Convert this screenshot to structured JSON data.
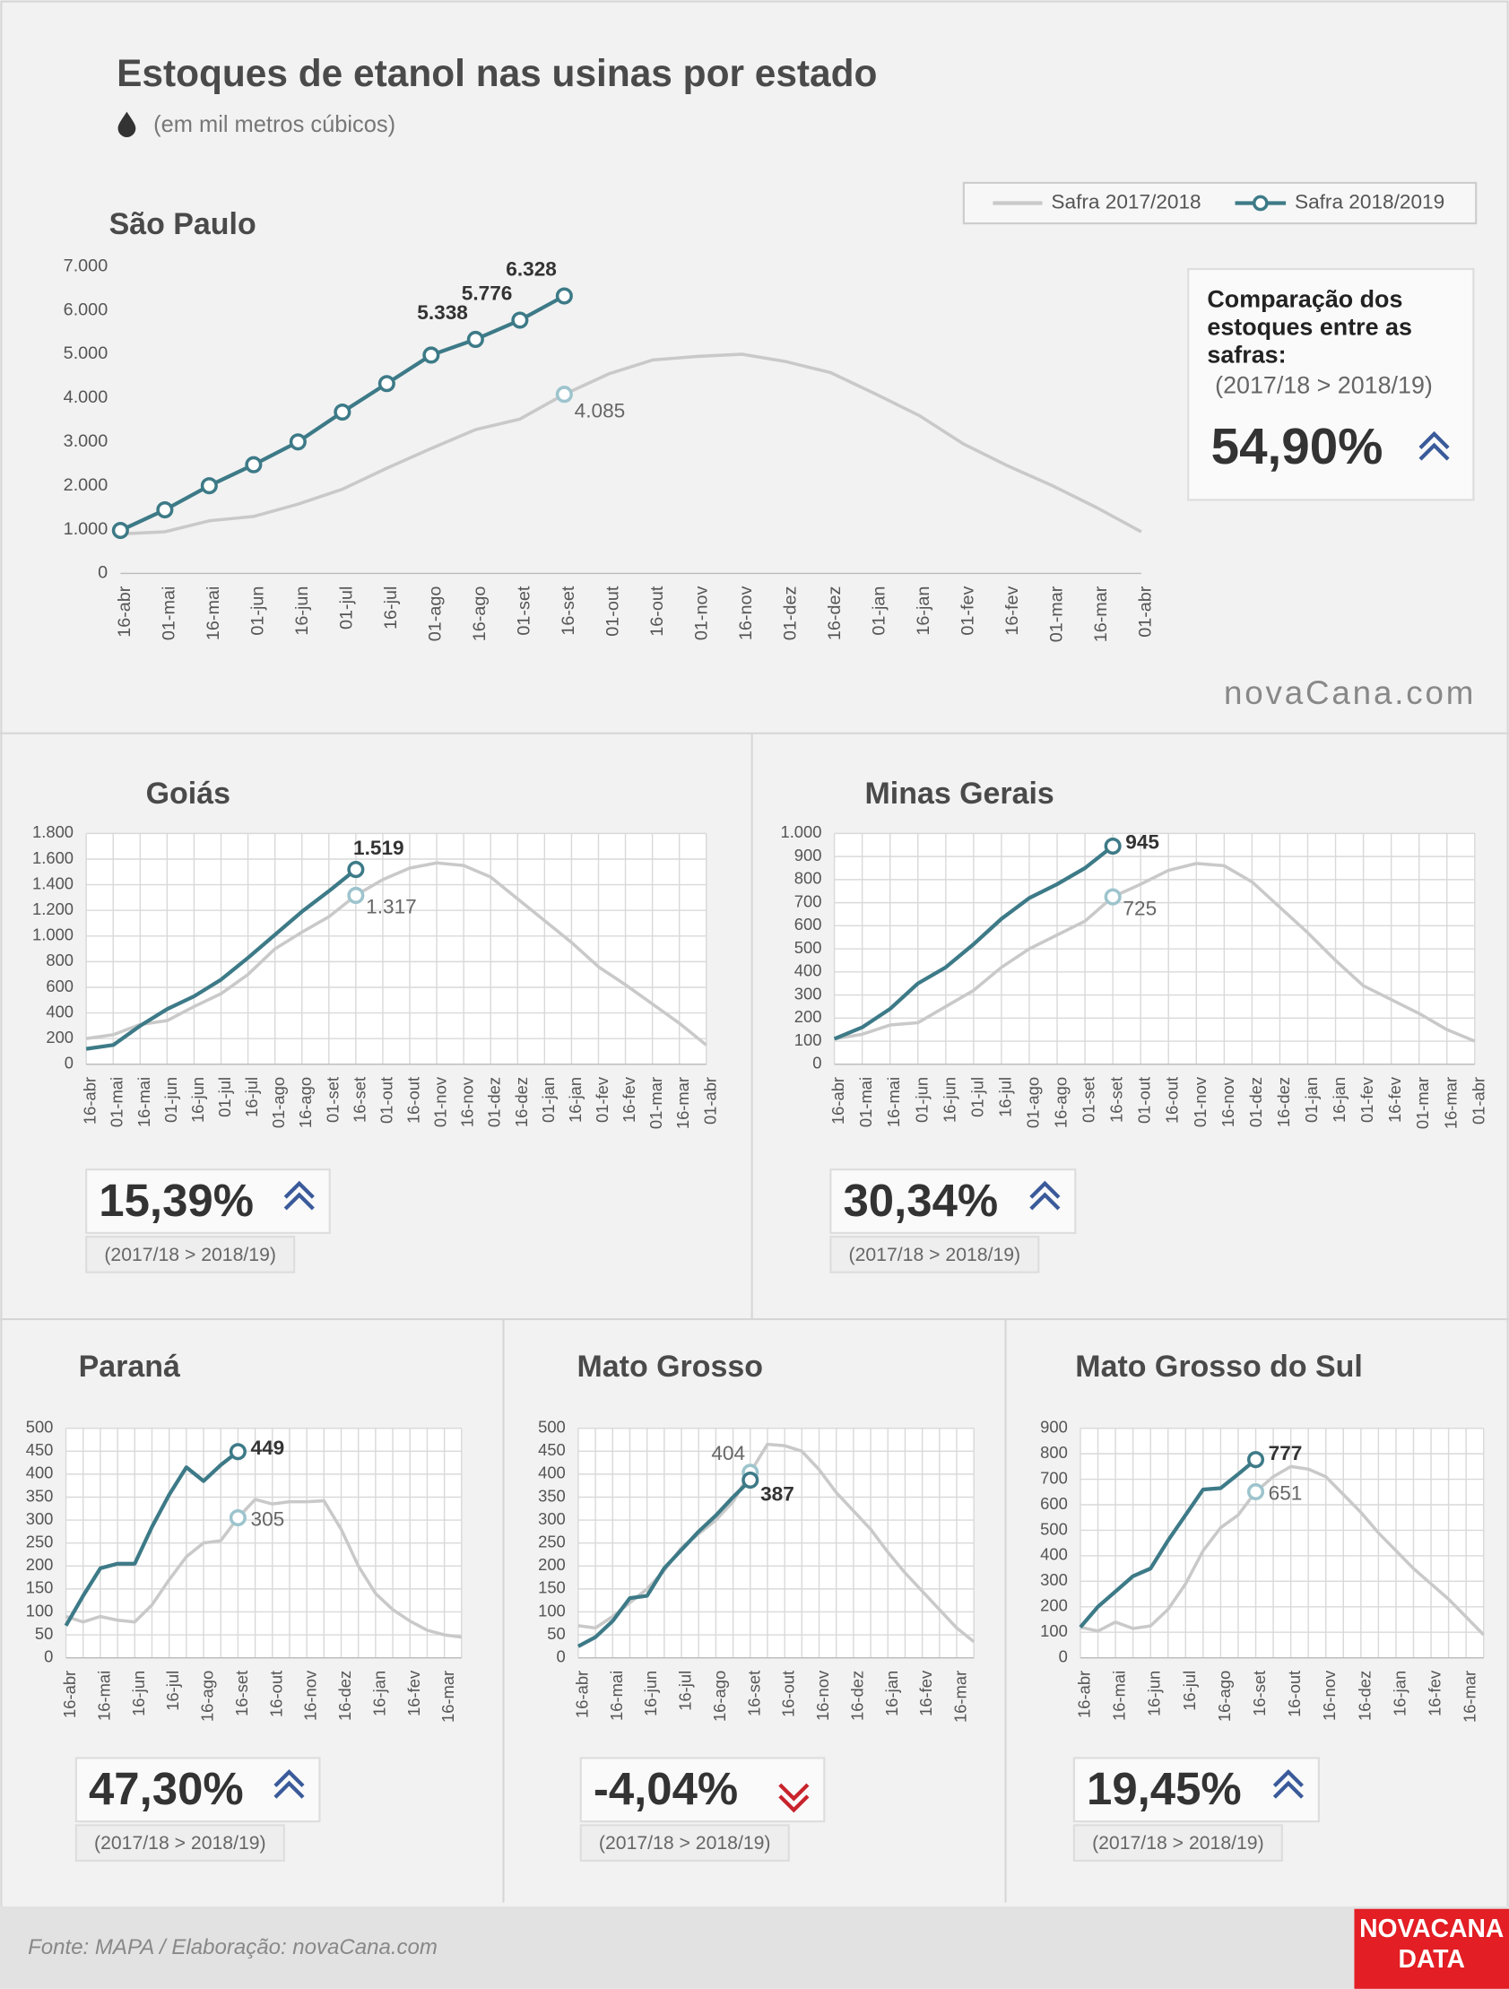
{
  "title": "Estoques de etanol nas usinas por estado",
  "subtitle": "(em mil metros cúbicos)",
  "brand": "novaCana.com",
  "source": "Fonte: MAPA  / Elaboração: novaCana.com",
  "logo": [
    "NOVACANA",
    "DATA"
  ],
  "chart_data": [
    {
      "type": "line",
      "title": "São Paulo",
      "grid": false,
      "note": "Comparação dos estoques entre as safras:",
      "period": "(2017/18 > 2018/19)",
      "change": "54,90%",
      "categories": [
        "16-abr",
        "01-mai",
        "16-mai",
        "01-jun",
        "16-jun",
        "01-jul",
        "16-jul",
        "01-ago",
        "16-ago",
        "01-set",
        "16-set",
        "01-out",
        "16-out",
        "01-nov",
        "16-nov",
        "01-dez",
        "16-dez",
        "01-jan",
        "16-jan",
        "01-fev",
        "16-fev",
        "01-mar",
        "16-mar",
        "01-abr"
      ],
      "ylim": [
        0,
        7000
      ],
      "yticks": [
        0,
        {
          "value": 1000,
          "label": "1.000"
        },
        {
          "value": 2000,
          "label": "2.000"
        },
        {
          "value": 3000,
          "label": "3.000"
        },
        {
          "value": 4000,
          "label": "4.000"
        },
        {
          "value": 5000,
          "label": "5.000"
        },
        {
          "value": 6000,
          "label": "6.000"
        },
        {
          "value": 7000,
          "label": "7.000"
        }
      ],
      "series": [
        {
          "name": "Safra 2017/2018",
          "color": "#c9c9c9",
          "marker_color": "#9dc4cd",
          "values": [
            900,
            950,
            1200,
            1300,
            1580,
            1920,
            2400,
            2850,
            3280,
            3520,
            4085,
            4550,
            4870,
            4950,
            5000,
            4830,
            4580,
            4100,
            3600,
            2950,
            2450,
            2000,
            1500,
            950
          ],
          "value_labels": [
            null,
            null,
            null,
            null,
            null,
            null,
            null,
            null,
            null,
            null,
            "4.085",
            null,
            null,
            null,
            null,
            null,
            null,
            null,
            null,
            null,
            null,
            null,
            null,
            null
          ]
        },
        {
          "name": "Safra 2018/2019",
          "color": "#3d7a87",
          "markers": true,
          "values": [
            980,
            1450,
            2000,
            2480,
            3000,
            3680,
            4330,
            4980,
            5338,
            5776,
            6328,
            null,
            null,
            null,
            null,
            null,
            null,
            null,
            null,
            null,
            null,
            null,
            null,
            null
          ],
          "value_labels": [
            null,
            null,
            null,
            null,
            null,
            null,
            null,
            null,
            "5.338",
            "5.776",
            "6.328",
            null,
            null,
            null,
            null,
            null,
            null,
            null,
            null,
            null,
            null,
            null,
            null,
            null
          ]
        }
      ]
    },
    {
      "type": "line",
      "title": "Goiás",
      "grid": true,
      "period": "(2017/18 > 2018/19)",
      "change": "15,39%",
      "categories": [
        "16-abr",
        "01-mai",
        "16-mai",
        "01-jun",
        "16-jun",
        "01-jul",
        "16-jul",
        "01-ago",
        "16-ago",
        "01-set",
        "16-set",
        "01-out",
        "16-out",
        "01-nov",
        "16-nov",
        "01-dez",
        "16-dez",
        "01-jan",
        "16-jan",
        "01-fev",
        "16-fev",
        "01-mar",
        "16-mar",
        "01-abr"
      ],
      "ylim": [
        0,
        1800
      ],
      "yticks": [
        0,
        200,
        400,
        600,
        800,
        {
          "value": 1000,
          "label": "1.000"
        },
        {
          "value": 1200,
          "label": "1.200"
        },
        {
          "value": 1400,
          "label": "1.400"
        },
        {
          "value": 1600,
          "label": "1.600"
        },
        {
          "value": 1800,
          "label": "1.800"
        }
      ],
      "series": [
        {
          "name": "Safra 2017/2018",
          "color": "#c9c9c9",
          "marker_color": "#9dc4cd",
          "values": [
            200,
            230,
            310,
            340,
            450,
            550,
            700,
            900,
            1030,
            1150,
            1317,
            1440,
            1530,
            1570,
            1550,
            1460,
            1290,
            1120,
            950,
            760,
            620,
            470,
            320,
            150
          ],
          "value_labels": [
            null,
            null,
            null,
            null,
            null,
            null,
            null,
            null,
            null,
            null,
            "1.317",
            null,
            null,
            null,
            null,
            null,
            null,
            null,
            null,
            null,
            null,
            null,
            null,
            null
          ]
        },
        {
          "name": "Safra 2018/2019",
          "color": "#3d7a87",
          "values": [
            120,
            150,
            300,
            430,
            530,
            660,
            830,
            1010,
            1190,
            1350,
            1519,
            null,
            null,
            null,
            null,
            null,
            null,
            null,
            null,
            null,
            null,
            null,
            null,
            null
          ],
          "value_labels": [
            null,
            null,
            null,
            null,
            null,
            null,
            null,
            null,
            null,
            null,
            "1.519",
            null,
            null,
            null,
            null,
            null,
            null,
            null,
            null,
            null,
            null,
            null,
            null,
            null
          ]
        }
      ]
    },
    {
      "type": "line",
      "title": "Minas Gerais",
      "grid": true,
      "period": "(2017/18 > 2018/19)",
      "change": "30,34%",
      "categories": [
        "16-abr",
        "01-mai",
        "16-mai",
        "01-jun",
        "16-jun",
        "01-jul",
        "16-jul",
        "01-ago",
        "16-ago",
        "01-set",
        "16-set",
        "01-out",
        "16-out",
        "01-nov",
        "16-nov",
        "01-dez",
        "16-dez",
        "01-jan",
        "16-jan",
        "01-fev",
        "16-fev",
        "01-mar",
        "16-mar",
        "01-abr"
      ],
      "ylim": [
        0,
        1000
      ],
      "yticks": [
        0,
        100,
        200,
        300,
        400,
        500,
        600,
        700,
        800,
        900,
        {
          "value": 1000,
          "label": "1.000"
        }
      ],
      "series": [
        {
          "name": "Safra 2017/2018",
          "color": "#c9c9c9",
          "marker_color": "#9dc4cd",
          "values": [
            110,
            130,
            170,
            180,
            250,
            320,
            420,
            500,
            560,
            620,
            725,
            780,
            840,
            870,
            860,
            790,
            680,
            570,
            450,
            340,
            280,
            220,
            150,
            100
          ],
          "value_labels": [
            null,
            null,
            null,
            null,
            null,
            null,
            null,
            null,
            null,
            null,
            "725",
            null,
            null,
            null,
            null,
            null,
            null,
            null,
            null,
            null,
            null,
            null,
            null,
            null
          ]
        },
        {
          "name": "Safra 2018/2019",
          "color": "#3d7a87",
          "values": [
            110,
            160,
            240,
            350,
            420,
            520,
            630,
            720,
            780,
            850,
            945,
            null,
            null,
            null,
            null,
            null,
            null,
            null,
            null,
            null,
            null,
            null,
            null,
            null
          ],
          "value_labels": [
            null,
            null,
            null,
            null,
            null,
            null,
            null,
            null,
            null,
            null,
            "945",
            null,
            null,
            null,
            null,
            null,
            null,
            null,
            null,
            null,
            null,
            null,
            null,
            null
          ]
        }
      ]
    },
    {
      "type": "line",
      "title": "Paraná",
      "grid": true,
      "period": "(2017/18 > 2018/19)",
      "change": "47,30%",
      "categories": [
        "16-abr",
        null,
        "16-mai",
        null,
        "16-jun",
        null,
        "16-jul",
        null,
        "16-ago",
        null,
        "16-set",
        null,
        "16-out",
        null,
        "16-nov",
        null,
        "16-dez",
        null,
        "16-jan",
        null,
        "16-fev",
        null,
        "16-mar",
        null
      ],
      "ylim": [
        0,
        500
      ],
      "yticks": [
        0,
        50,
        100,
        150,
        200,
        250,
        300,
        350,
        400,
        450,
        500
      ],
      "series": [
        {
          "name": "Safra 2017/2018",
          "color": "#c9c9c9",
          "marker_color": "#9dc4cd",
          "values": [
            90,
            78,
            90,
            82,
            78,
            115,
            170,
            220,
            250,
            255,
            305,
            345,
            335,
            340,
            340,
            342,
            280,
            200,
            140,
            105,
            80,
            60,
            50,
            45
          ],
          "value_labels": [
            null,
            null,
            null,
            null,
            null,
            null,
            null,
            null,
            null,
            null,
            "305",
            null,
            null,
            null,
            null,
            null,
            null,
            null,
            null,
            null,
            null,
            null,
            null,
            null
          ]
        },
        {
          "name": "Safra 2018/2019",
          "color": "#3d7a87",
          "values": [
            70,
            135,
            195,
            205,
            205,
            285,
            355,
            415,
            385,
            420,
            449,
            null,
            null,
            null,
            null,
            null,
            null,
            null,
            null,
            null,
            null,
            null,
            null,
            null
          ],
          "value_labels": [
            null,
            null,
            null,
            null,
            null,
            null,
            null,
            null,
            null,
            null,
            "449",
            null,
            null,
            null,
            null,
            null,
            null,
            null,
            null,
            null,
            null,
            null,
            null,
            null
          ]
        }
      ]
    },
    {
      "type": "line",
      "title": "Mato Grosso",
      "grid": true,
      "period": "(2017/18 > 2018/19)",
      "change": "-4,04%",
      "categories": [
        "16-abr",
        null,
        "16-mai",
        null,
        "16-jun",
        null,
        "16-jul",
        null,
        "16-ago",
        null,
        "16-set",
        null,
        "16-out",
        null,
        "16-nov",
        null,
        "16-dez",
        null,
        "16-jan",
        null,
        "16-fev",
        null,
        "16-mar",
        null
      ],
      "ylim": [
        0,
        500
      ],
      "yticks": [
        0,
        50,
        100,
        150,
        200,
        250,
        300,
        350,
        400,
        450,
        500
      ],
      "series": [
        {
          "name": "Safra 2017/2018",
          "color": "#c9c9c9",
          "marker_color": "#9dc4cd",
          "values": [
            70,
            65,
            90,
            120,
            150,
            190,
            240,
            270,
            300,
            340,
            404,
            465,
            462,
            450,
            410,
            360,
            320,
            280,
            230,
            185,
            145,
            105,
            65,
            35
          ],
          "value_labels": [
            null,
            null,
            null,
            null,
            null,
            null,
            null,
            null,
            null,
            null,
            "404",
            null,
            null,
            null,
            null,
            null,
            null,
            null,
            null,
            null,
            null,
            null,
            null,
            null
          ]
        },
        {
          "name": "Safra 2018/2019",
          "color": "#3d7a87",
          "values": [
            25,
            45,
            80,
            130,
            135,
            195,
            235,
            275,
            310,
            350,
            387,
            null,
            null,
            null,
            null,
            null,
            null,
            null,
            null,
            null,
            null,
            null,
            null,
            null
          ],
          "value_labels": [
            null,
            null,
            null,
            null,
            null,
            null,
            null,
            null,
            null,
            null,
            "387",
            null,
            null,
            null,
            null,
            null,
            null,
            null,
            null,
            null,
            null,
            null,
            null,
            null
          ]
        }
      ]
    },
    {
      "type": "line",
      "title": "Mato Grosso do Sul",
      "grid": true,
      "period": "(2017/18 > 2018/19)",
      "change": "19,45%",
      "categories": [
        "16-abr",
        null,
        "16-mai",
        null,
        "16-jun",
        null,
        "16-jul",
        null,
        "16-ago",
        null,
        "16-set",
        null,
        "16-out",
        null,
        "16-nov",
        null,
        "16-dez",
        null,
        "16-jan",
        null,
        "16-fev",
        null,
        "16-mar",
        null
      ],
      "ylim": [
        0,
        900
      ],
      "yticks": [
        0,
        100,
        200,
        300,
        400,
        500,
        600,
        700,
        800,
        900
      ],
      "series": [
        {
          "name": "Safra 2017/2018",
          "color": "#c9c9c9",
          "marker_color": "#9dc4cd",
          "values": [
            120,
            105,
            140,
            115,
            125,
            190,
            290,
            420,
            510,
            560,
            651,
            710,
            750,
            740,
            710,
            640,
            570,
            490,
            420,
            350,
            290,
            230,
            160,
            90
          ],
          "value_labels": [
            null,
            null,
            null,
            null,
            null,
            null,
            null,
            null,
            null,
            null,
            "651",
            null,
            null,
            null,
            null,
            null,
            null,
            null,
            null,
            null,
            null,
            null,
            null,
            null
          ]
        },
        {
          "name": "Safra 2018/2019",
          "color": "#3d7a87",
          "values": [
            120,
            200,
            260,
            320,
            350,
            460,
            560,
            660,
            665,
            720,
            777,
            null,
            null,
            null,
            null,
            null,
            null,
            null,
            null,
            null,
            null,
            null,
            null,
            null
          ],
          "value_labels": [
            null,
            null,
            null,
            null,
            null,
            null,
            null,
            null,
            null,
            null,
            "777",
            null,
            null,
            null,
            null,
            null,
            null,
            null,
            null,
            null,
            null,
            null,
            null,
            null
          ]
        }
      ]
    }
  ]
}
